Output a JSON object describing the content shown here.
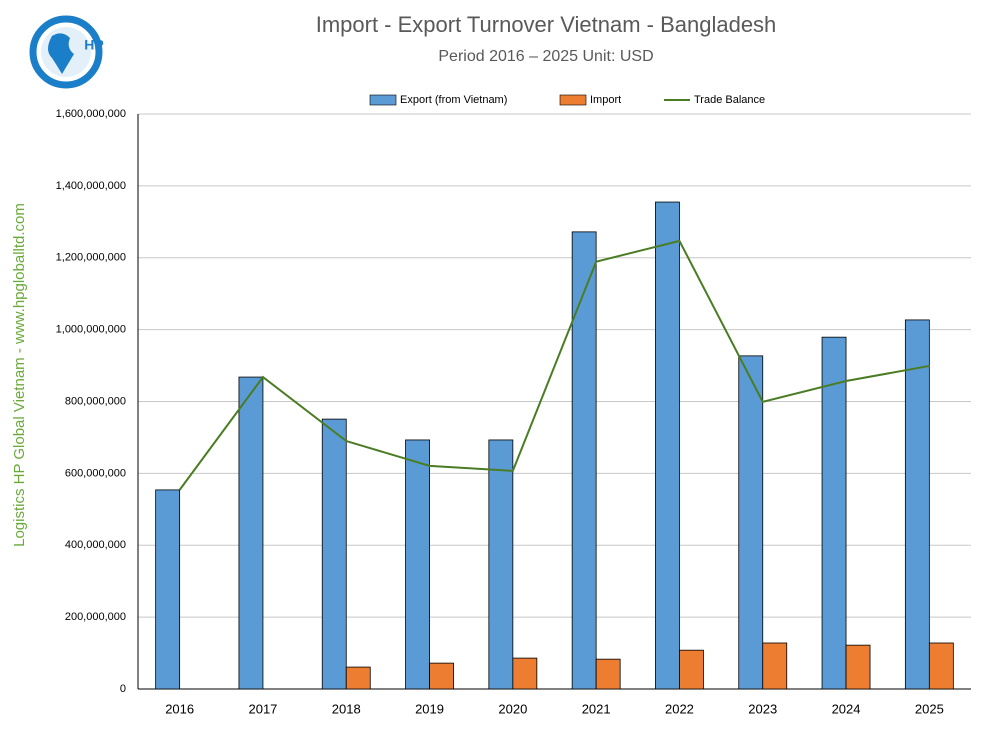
{
  "chart_data": {
    "type": "bar",
    "title": "Import - Export Turnover Vietnam - Bangladesh",
    "subtitle": "Period 2016 – 2025  Unit: USD",
    "side_text": "Logistics HP Global Vietnam - www.hpgloballtd.com",
    "logo_text": "HP",
    "categories": [
      "2016",
      "2017",
      "2018",
      "2019",
      "2020",
      "2021",
      "2022",
      "2023",
      "2024",
      "2025"
    ],
    "series": [
      {
        "name": "Export (from Vietnam)",
        "color": "#5b9bd5",
        "type": "bar",
        "values": [
          554000000,
          868000000,
          751000000,
          693000000,
          693000000,
          1272000000,
          1355000000,
          927000000,
          979000000,
          1027000000
        ]
      },
      {
        "name": "Import",
        "color": "#ed7d31",
        "type": "bar",
        "values": [
          0,
          0,
          61000000,
          72000000,
          86000000,
          83000000,
          108000000,
          128000000,
          122000000,
          128000000
        ]
      },
      {
        "name": "Trade Balance",
        "color": "#4a7c23",
        "type": "line",
        "values": [
          554000000,
          868000000,
          690000000,
          621000000,
          607000000,
          1189000000,
          1247000000,
          799000000,
          857000000,
          899000000
        ]
      }
    ],
    "ylim": [
      0,
      1600000000
    ],
    "yticks": [
      0,
      {
        "value": 200000000,
        "label": "200,000,000"
      },
      {
        "value": 400000000,
        "label": "400,000,000"
      },
      {
        "value": 600000000,
        "label": "600,000,000"
      },
      {
        "value": 800000000,
        "label": "800,000,000"
      },
      {
        "value": 1000000000,
        "label": "1,000,000,000"
      },
      {
        "value": 1200000000,
        "label": "1,200,000,000"
      },
      {
        "value": 1400000000,
        "label": "1,400,000,000"
      },
      {
        "value": 1600000000,
        "label": "1,600,000,000"
      }
    ],
    "grid": true,
    "legend": "top"
  }
}
